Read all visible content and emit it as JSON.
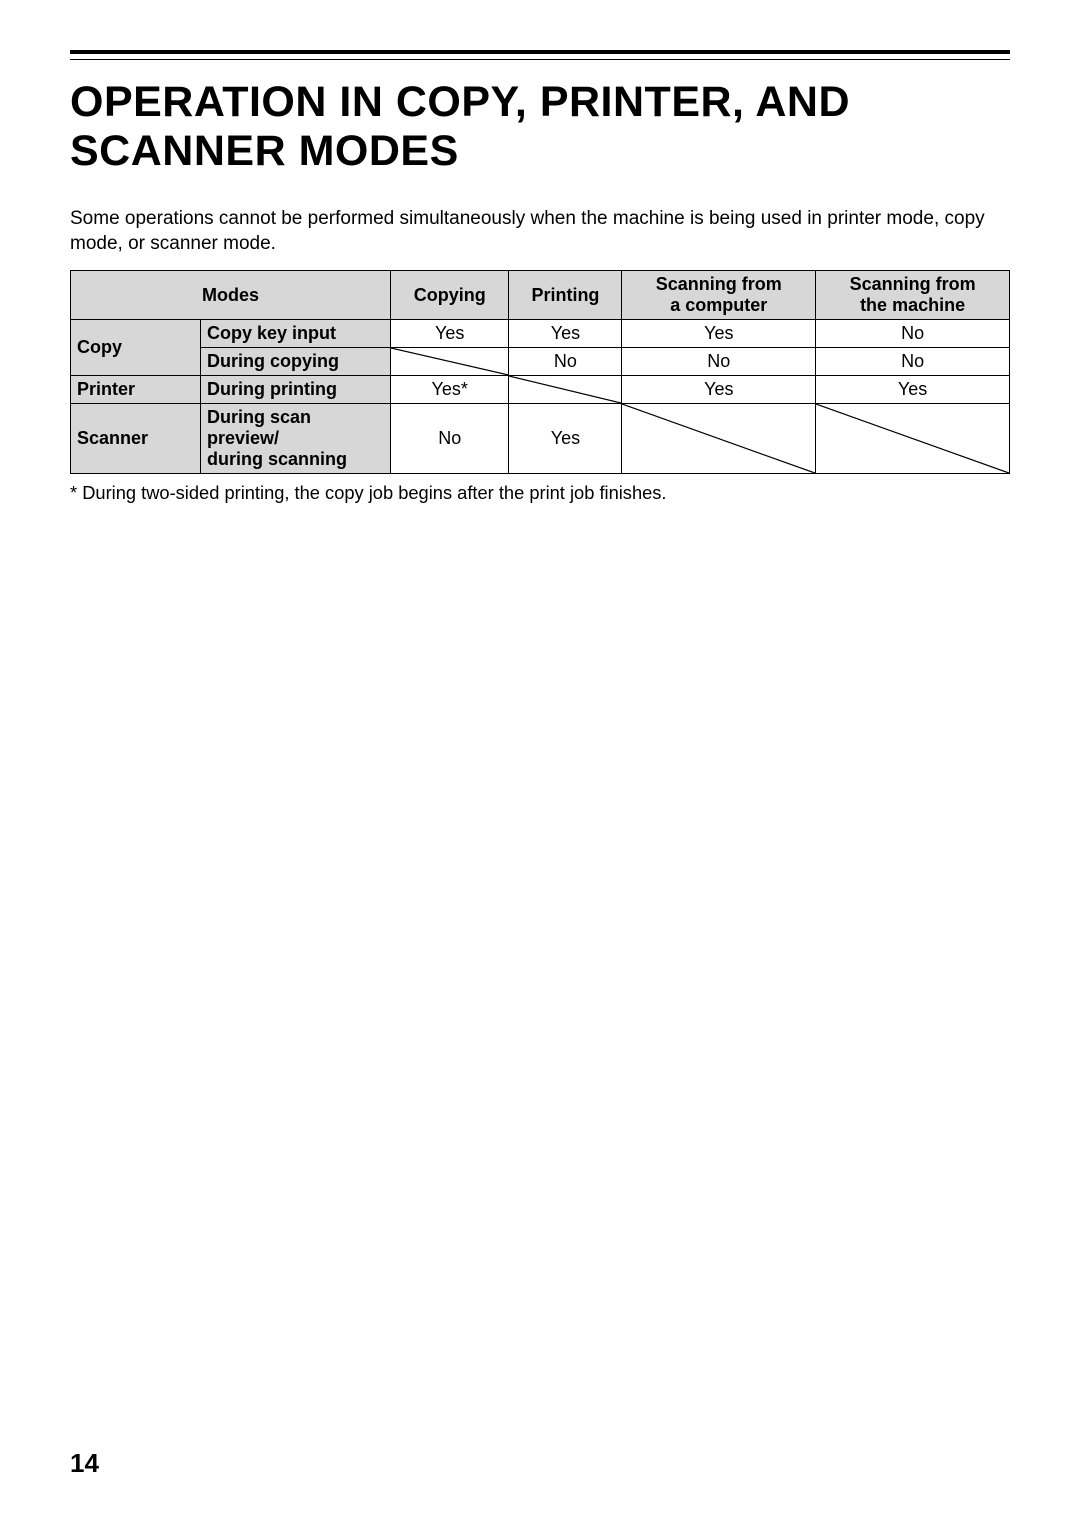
{
  "title": "OPERATION IN COPY, PRINTER, AND SCANNER MODES",
  "intro": "Some operations cannot be performed simultaneously when the machine is being used in printer mode, copy mode, or scanner mode.",
  "table": {
    "header": {
      "modes": "Modes",
      "copying": "Copying",
      "printing": "Printing",
      "scan_computer_l1": "Scanning from",
      "scan_computer_l2": "a computer",
      "scan_machine_l1": "Scanning from",
      "scan_machine_l2": "the machine"
    },
    "rows": [
      {
        "cat": "Copy",
        "cat_rowspan": 2,
        "sub": "Copy key input",
        "cells": [
          "Yes",
          "Yes",
          "Yes",
          "No"
        ],
        "diag": [
          false,
          false,
          false,
          false
        ]
      },
      {
        "sub": "During copying",
        "cells": [
          "",
          "No",
          "No",
          "No"
        ],
        "diag": [
          true,
          false,
          false,
          false
        ]
      },
      {
        "cat": "Printer",
        "cat_rowspan": 1,
        "sub": "During printing",
        "cells": [
          "Yes*",
          "",
          "Yes",
          "Yes"
        ],
        "diag": [
          false,
          true,
          false,
          false
        ]
      },
      {
        "cat": "Scanner",
        "cat_rowspan": 1,
        "sub": "During scan preview/ during scanning",
        "cells": [
          "No",
          "Yes",
          "",
          ""
        ],
        "diag": [
          false,
          false,
          true,
          true
        ]
      }
    ],
    "header_bg": "#d7d7d7",
    "border_color": "#000000",
    "cell_bg": "#ffffff",
    "font_size": 18
  },
  "footnote": "*  During two-sided printing, the copy job begins after the print job finishes.",
  "page_number": "14",
  "colors": {
    "text": "#000000",
    "background": "#ffffff",
    "rule": "#000000"
  },
  "fonts": {
    "title_size": 43,
    "body_size": 19,
    "footnote_size": 18,
    "page_num_size": 26
  }
}
